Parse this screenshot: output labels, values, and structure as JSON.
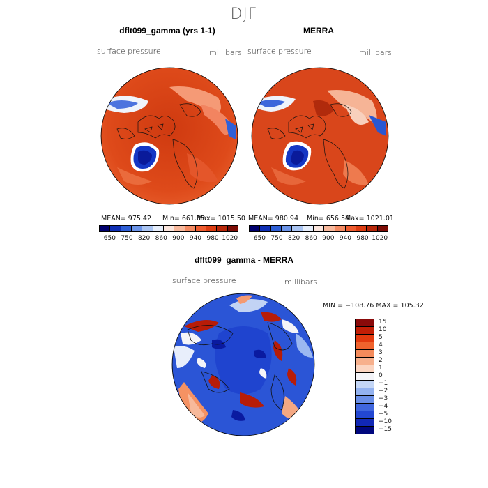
{
  "season": "DJF",
  "panels": {
    "left": {
      "title": "dflt099_gamma (yrs 1-1)",
      "variable": "surface pressure",
      "units": "millibars",
      "mean": "MEAN= 975.42",
      "min": "Min= 661.35",
      "max": "Max= 1015.50"
    },
    "right": {
      "title": "MERRA",
      "variable": "surface pressure",
      "units": "millibars",
      "mean": "MEAN= 980.94",
      "min": "Min= 656.54",
      "max": "Max= 1021.01"
    },
    "diff": {
      "title": "dflt099_gamma - MERRA",
      "variable": "surface pressure",
      "units": "millibars",
      "minmax": "MIN = −108.76 MAX = 105.32"
    }
  },
  "colorbar_top": {
    "labels": [
      "650",
      "750",
      "820",
      "860",
      "900",
      "940",
      "980",
      "1020"
    ],
    "colors": [
      "#00006e",
      "#0f2fb4",
      "#2e5fd6",
      "#6b94e8",
      "#a9c4f2",
      "#e6eefb",
      "#fbe6de",
      "#f7b89c",
      "#f38a62",
      "#ee5c2f",
      "#dc3d12",
      "#b8280a",
      "#7d0c06"
    ]
  },
  "colorbar_diff": {
    "labels": [
      "15",
      "10",
      "5",
      "4",
      "3",
      "2",
      "1",
      "0",
      "−1",
      "−2",
      "−3",
      "−4",
      "−5",
      "−10",
      "−15"
    ],
    "colors": [
      "#8a0a0a",
      "#c21e06",
      "#e33a0f",
      "#f0632d",
      "#f48b5b",
      "#f7b08c",
      "#fbd5c1",
      "#f4f4f8",
      "#c4d6f6",
      "#93b2f0",
      "#6a8fe8",
      "#3f66de",
      "#2347d2",
      "#1128b6",
      "#00077e"
    ]
  }
}
